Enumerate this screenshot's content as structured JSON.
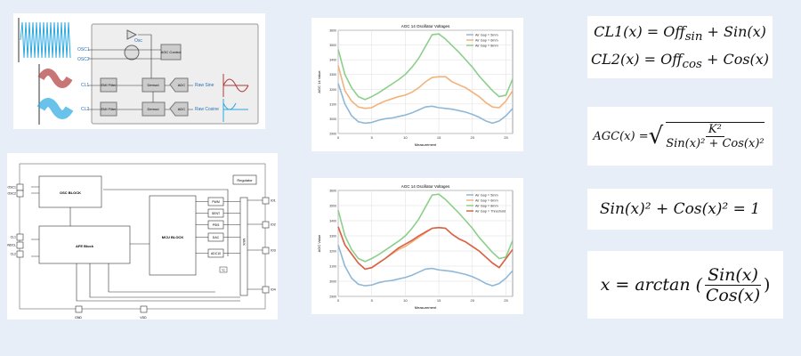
{
  "sensor_diagram": {
    "pins": [
      "OSC1",
      "OSC2",
      "CL1",
      "CL2"
    ],
    "osc": "Osc",
    "agc": "AGC Control",
    "emi": "EMI Filter",
    "demod": "Demod",
    "adc": "ADC",
    "raw_sine": "Raw Sine",
    "raw_cosine": "Raw Cosine"
  },
  "block_diagram": {
    "left_pins": [
      "OSC1",
      "OSC2",
      "CL1",
      "GNDCL",
      "CL2"
    ],
    "right_pins": [
      "IO1",
      "IO2",
      "IO3",
      "IO4"
    ],
    "bottom_pins": [
      "GND",
      "VDD"
    ],
    "osc_block": "OSC BLOCK",
    "afe_block": "AFE Block",
    "mcu_block": "MCU BLOCK",
    "regulator": "Regulator",
    "peripherals": [
      "PWM",
      "SENT",
      "PSI5",
      "DAC",
      "ADC10"
    ],
    "mux": "MUX",
    "temp": "°C"
  },
  "colors": {
    "blue": "#8fb8d8",
    "orange": "#f2b27a",
    "green": "#8ccf8c",
    "red": "#d9624a"
  },
  "chart_data": [
    {
      "type": "line",
      "title": "AGC 14 Oscillator Voltages",
      "xlabel": "Measurement",
      "ylabel": "AGC 14 Value",
      "xlim": [
        0,
        26
      ],
      "ylim": [
        2900,
        3600
      ],
      "xticks": [
        0,
        5,
        10,
        15,
        20,
        25
      ],
      "yticks": [
        2900,
        3000,
        3100,
        3200,
        3300,
        3400,
        3500,
        3600
      ],
      "legend": "top-right",
      "grid": true,
      "series": [
        {
          "name": "Air Gap = 5mm",
          "color": "#8fb8d8",
          "values": [
            3240,
            3100,
            3020,
            2980,
            2970,
            2975,
            2990,
            3000,
            3005,
            3015,
            3025,
            3040,
            3060,
            3080,
            3085,
            3075,
            3070,
            3065,
            3055,
            3045,
            3030,
            3010,
            2985,
            2970,
            2985,
            3020,
            3070
          ]
        },
        {
          "name": "Air Gap = 6mm",
          "color": "#f2b27a",
          "values": [
            3360,
            3190,
            3120,
            3080,
            3070,
            3075,
            3100,
            3120,
            3135,
            3150,
            3160,
            3180,
            3210,
            3250,
            3280,
            3285,
            3285,
            3250,
            3230,
            3210,
            3180,
            3150,
            3110,
            3080,
            3075,
            3120,
            3190
          ]
        },
        {
          "name": "Air Gap = 8mm",
          "color": "#8ccf8c",
          "values": [
            3470,
            3300,
            3210,
            3150,
            3130,
            3150,
            3175,
            3205,
            3235,
            3265,
            3300,
            3350,
            3410,
            3490,
            3570,
            3575,
            3540,
            3495,
            3450,
            3400,
            3350,
            3290,
            3240,
            3190,
            3150,
            3160,
            3270
          ]
        }
      ]
    },
    {
      "type": "line",
      "title": "AGC 14 Oscillator Voltages",
      "xlabel": "Measurement",
      "ylabel": "AGC Value",
      "xlim": [
        0,
        26
      ],
      "ylim": [
        2900,
        3600
      ],
      "xticks": [
        0,
        5,
        10,
        15,
        20,
        25
      ],
      "yticks": [
        2900,
        3000,
        3100,
        3200,
        3300,
        3400,
        3500,
        3600
      ],
      "legend": "top-right",
      "grid": true,
      "series": [
        {
          "name": "Air Gap = 5mm",
          "color": "#8fb8d8",
          "values": [
            3240,
            3100,
            3020,
            2980,
            2970,
            2975,
            2990,
            3000,
            3005,
            3015,
            3025,
            3040,
            3060,
            3080,
            3085,
            3075,
            3070,
            3065,
            3055,
            3045,
            3030,
            3010,
            2985,
            2970,
            2985,
            3020,
            3070
          ]
        },
        {
          "name": "Air Gap = 6mm",
          "color": "#f2b27a",
          "values": [
            3360,
            3240,
            3180,
            3120,
            3080,
            3090,
            3120,
            3150,
            3180,
            3210,
            3230,
            3260,
            3290,
            3320,
            3350,
            3355,
            3350,
            3310,
            3280,
            3260,
            3230,
            3200,
            3160,
            3120,
            3090,
            3150,
            3210
          ]
        },
        {
          "name": "Air Gap = 8mm",
          "color": "#8ccf8c",
          "values": [
            3470,
            3300,
            3210,
            3150,
            3130,
            3150,
            3175,
            3205,
            3235,
            3265,
            3300,
            3350,
            3410,
            3490,
            3570,
            3575,
            3540,
            3495,
            3450,
            3400,
            3350,
            3290,
            3240,
            3190,
            3150,
            3160,
            3270
          ]
        },
        {
          "name": "Air Gap = Threshold",
          "color": "#d9624a",
          "values": [
            3360,
            3240,
            3180,
            3120,
            3080,
            3090,
            3120,
            3150,
            3185,
            3220,
            3245,
            3270,
            3300,
            3325,
            3350,
            3355,
            3350,
            3310,
            3280,
            3260,
            3230,
            3200,
            3160,
            3120,
            3090,
            3150,
            3210
          ]
        }
      ]
    }
  ],
  "formulas": {
    "cl1": {
      "lhs": "CL1(x) = ",
      "off": "Off",
      "sub": "sin",
      "rest": " + Sin(x)"
    },
    "cl2": {
      "lhs": "CL2(x) = ",
      "off": "Off",
      "sub": "cos",
      "rest": " + Cos(x)"
    },
    "agc": {
      "lhs": "AGC(x) = ",
      "num": "K²",
      "den": "Sin(x)² + Cos(x)²"
    },
    "identity": "Sin(x)² + Cos(x)² = 1",
    "arctan": {
      "lhs": "x = arctan (",
      "num": "Sin(x)",
      "den": "Cos(x)",
      "rhs": ")"
    }
  }
}
